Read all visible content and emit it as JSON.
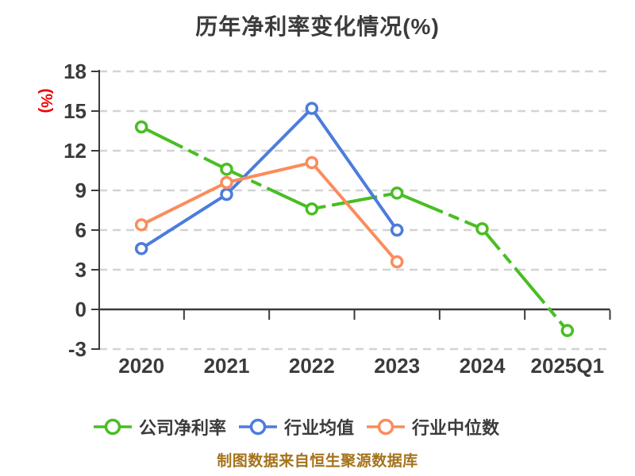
{
  "header": {
    "title": "历年净利率变化情况(%)"
  },
  "footer": {
    "source_note": "制图数据来自恒生聚源数据库"
  },
  "colors": {
    "background": "#FFFFFF",
    "text": "#3B3B3B",
    "axis": "#3B3B3B",
    "grid": "#D3D3D3",
    "y_unit_red": "#EE0000",
    "footer_gold": "#A4731B",
    "marker_fill": "#FFFFFF"
  },
  "chart_data": {
    "type": "line",
    "title": "历年净利率变化情况(%)",
    "ylabel": "(%)",
    "categories": [
      "2020",
      "2021",
      "2022",
      "2023",
      "2024",
      "2025Q1"
    ],
    "series": [
      {
        "name": "公司净利率",
        "color": "#49BE23",
        "line_style": "long-dash",
        "marker": "circle",
        "values": [
          13.8,
          10.6,
          7.6,
          8.8,
          6.1,
          -1.6
        ]
      },
      {
        "name": "行业均值",
        "color": "#4C7CDC",
        "line_style": "solid",
        "marker": "circle",
        "values": [
          4.6,
          8.7,
          15.2,
          6.0,
          null,
          null
        ]
      },
      {
        "name": "行业中位数",
        "color": "#FB8C5C",
        "line_style": "solid",
        "marker": "circle",
        "values": [
          6.4,
          9.6,
          11.1,
          3.6,
          null,
          null
        ]
      }
    ],
    "ylim": [
      -3,
      18
    ],
    "yticks": [
      18,
      15,
      12,
      9,
      6,
      3,
      0,
      -3
    ],
    "grid": "horizontal-dashed",
    "x_axis_position": "zero",
    "legend_position": "bottom"
  }
}
